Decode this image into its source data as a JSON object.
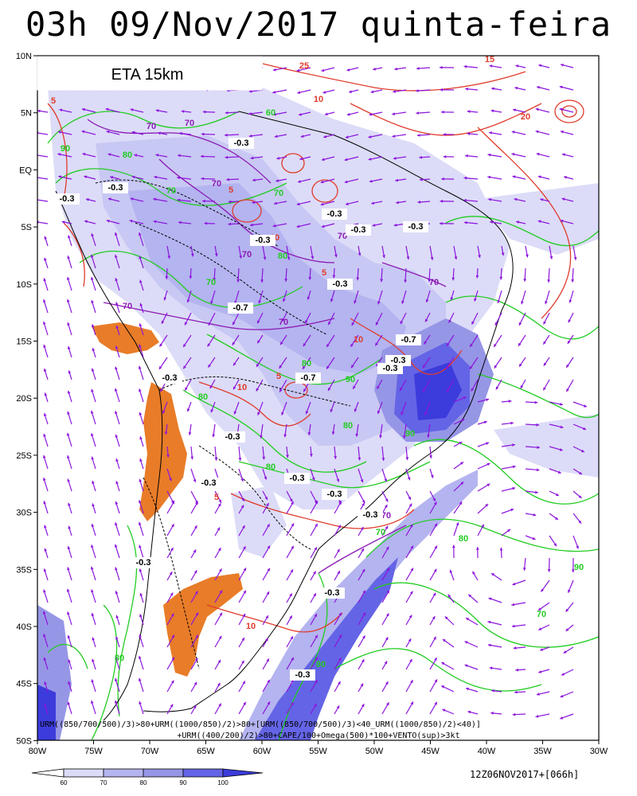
{
  "title": "03h 09/Nov/2017 quinta-feira",
  "model_label": "ETA 15km",
  "latitude_labels": [
    "10N",
    "5N",
    "EQ",
    "5S",
    "10S",
    "15S",
    "20S",
    "25S",
    "30S",
    "35S",
    "40S",
    "45S",
    "50S"
  ],
  "longitude_labels": [
    "80W",
    "75W",
    "70W",
    "65W",
    "60W",
    "55W",
    "50W",
    "45W",
    "40W",
    "35W",
    "30W"
  ],
  "formula_line1": "URM((850/700/500)/3)>80+URM((1000/850)/2)>80+[URM((850/700/500)/3)<40_URM((1000/850)/2)<40)]",
  "formula_line2": "+URM((400/200)/2)>80+CAPE/100+Omega(500)*100+VENTO(sup)>3kt",
  "run_info": "12Z06NOV2017+[066h]",
  "colorbar": {
    "ticks": [
      "60",
      "70",
      "80",
      "90",
      "100"
    ],
    "colors": [
      "#ffffff",
      "#dcdcf8",
      "#b4b4f0",
      "#9696e6",
      "#6464e6",
      "#3c3cdc"
    ]
  },
  "contour_labels": {
    "green": [
      "90",
      "80",
      "70",
      "60",
      "70",
      "80",
      "70",
      "80",
      "90",
      "80",
      "80",
      "90",
      "80",
      "70",
      "80",
      "90",
      "70",
      "80",
      "80"
    ],
    "red": [
      "5",
      "10",
      "15",
      "20",
      "25",
      "5",
      "10",
      "5",
      "10",
      "5",
      "10",
      "5",
      "10"
    ],
    "purple": [
      "70",
      "70",
      "70",
      "70",
      "70",
      "70",
      "70",
      "70",
      "70"
    ],
    "omega": [
      "-0.3",
      "-0.3",
      "-0.3",
      "-0.3",
      "-0.3",
      "-0.3",
      "-0.3",
      "-0.3",
      "-0.7",
      "-0.3",
      "-0.7",
      "-0.7",
      "-0.3",
      "-0.3",
      "-0.3",
      "-0.3",
      "-0.3",
      "-0.3",
      "-0.3",
      "-0.3",
      "-0.3",
      "-0.3"
    ]
  },
  "colors": {
    "green_contour": "#22cc22",
    "red_contour": "#e03c2c",
    "purple_contour": "#8c1ab4",
    "wind_arrow": "#8c14dc",
    "cape_fill": "#e87c28",
    "coast": "#000000"
  }
}
